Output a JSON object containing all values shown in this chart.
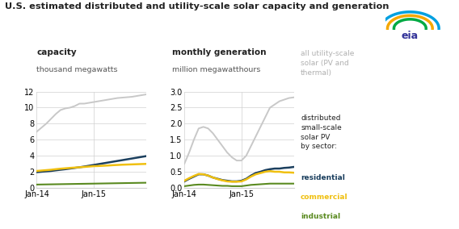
{
  "title": "U.S. estimated distributed and utility-scale solar capacity and generation",
  "left_title": "capacity",
  "left_unit": "thousand megawatts",
  "right_title": "monthly generation",
  "right_unit": "million megawatthours",
  "left_ylim": [
    0,
    12
  ],
  "left_yticks": [
    0,
    2,
    4,
    6,
    8,
    10,
    12
  ],
  "right_ylim": [
    0,
    3.0
  ],
  "right_yticks": [
    0.0,
    0.5,
    1.0,
    1.5,
    2.0,
    2.5,
    3.0
  ],
  "colors": {
    "utility": "#c8c8c8",
    "residential": "#1b3f5e",
    "commercial": "#f0c010",
    "industrial": "#5a8a20"
  },
  "legend_colors": {
    "utility": "#b0b0b0",
    "distributed": "#222222",
    "residential": "#1b3f5e",
    "commercial": "#f0c010",
    "industrial": "#5a8a20"
  },
  "xtick_labels": [
    "Jan-14",
    "Jan-15"
  ],
  "cap_utility": [
    7.0,
    7.5,
    8.0,
    8.6,
    9.2,
    9.7,
    9.9,
    10.0,
    10.2,
    10.5,
    10.5,
    10.6,
    10.7,
    10.8,
    10.9,
    11.0,
    11.1,
    11.2,
    11.25,
    11.3,
    11.35,
    11.45,
    11.55,
    11.65
  ],
  "cap_residential": [
    1.95,
    2.0,
    2.05,
    2.1,
    2.18,
    2.25,
    2.32,
    2.4,
    2.48,
    2.56,
    2.65,
    2.75,
    2.85,
    2.95,
    3.05,
    3.15,
    3.25,
    3.35,
    3.45,
    3.55,
    3.65,
    3.75,
    3.85,
    3.95
  ],
  "cap_commercial": [
    2.1,
    2.15,
    2.2,
    2.25,
    2.32,
    2.38,
    2.43,
    2.48,
    2.52,
    2.56,
    2.6,
    2.65,
    2.7,
    2.72,
    2.75,
    2.78,
    2.82,
    2.85,
    2.88,
    2.9,
    2.92,
    2.94,
    2.96,
    2.98
  ],
  "cap_industrial": [
    0.4,
    0.41,
    0.42,
    0.43,
    0.44,
    0.45,
    0.46,
    0.47,
    0.48,
    0.49,
    0.5,
    0.51,
    0.52,
    0.53,
    0.54,
    0.55,
    0.56,
    0.57,
    0.58,
    0.59,
    0.6,
    0.61,
    0.62,
    0.63
  ],
  "gen_utility": [
    0.75,
    1.1,
    1.5,
    1.85,
    1.9,
    1.85,
    1.7,
    1.5,
    1.3,
    1.1,
    0.95,
    0.85,
    0.85,
    1.0,
    1.3,
    1.6,
    1.9,
    2.2,
    2.5,
    2.6,
    2.7,
    2.75,
    2.8,
    2.82
  ],
  "gen_residential": [
    0.2,
    0.28,
    0.35,
    0.42,
    0.42,
    0.38,
    0.32,
    0.28,
    0.24,
    0.22,
    0.2,
    0.2,
    0.22,
    0.28,
    0.38,
    0.46,
    0.5,
    0.55,
    0.58,
    0.6,
    0.6,
    0.62,
    0.63,
    0.65
  ],
  "gen_commercial": [
    0.22,
    0.3,
    0.37,
    0.43,
    0.42,
    0.38,
    0.32,
    0.27,
    0.23,
    0.2,
    0.19,
    0.19,
    0.2,
    0.26,
    0.35,
    0.42,
    0.46,
    0.5,
    0.52,
    0.5,
    0.5,
    0.48,
    0.48,
    0.47
  ],
  "gen_industrial": [
    0.05,
    0.07,
    0.09,
    0.1,
    0.1,
    0.09,
    0.08,
    0.07,
    0.06,
    0.06,
    0.05,
    0.05,
    0.05,
    0.07,
    0.09,
    0.1,
    0.11,
    0.12,
    0.13,
    0.13,
    0.13,
    0.13,
    0.13,
    0.13
  ],
  "background_color": "#ffffff",
  "grid_color": "#d0d0d0"
}
